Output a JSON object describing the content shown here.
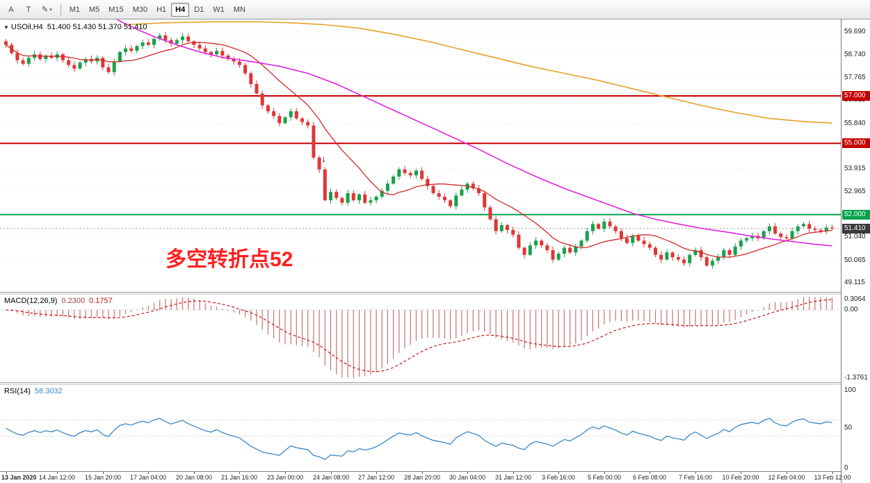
{
  "toolbar": {
    "tools": [
      {
        "name": "cursor-tool",
        "label": "A"
      },
      {
        "name": "text-tool",
        "label": "T"
      },
      {
        "name": "draw-tool",
        "label": "✎",
        "caret": "▾"
      }
    ],
    "timeframes": [
      "M1",
      "M5",
      "M15",
      "M30",
      "H1",
      "H4",
      "D1",
      "W1",
      "MN"
    ],
    "active_timeframe": "H4"
  },
  "main_chart": {
    "expand_icon": "▼",
    "symbol": "USOil,H4",
    "ohlc": "51.400 51.430 51.370 51.410",
    "annotation": {
      "text": "多空转折点52",
      "color": "#ff1e1e"
    },
    "down_arrow_marker": "↓",
    "price_ticks": [
      "59.690",
      "58.740",
      "57.765",
      "56.815",
      "55.840",
      "54.890",
      "53.915",
      "52.965",
      "51.990",
      "51.040",
      "50.065",
      "49.115"
    ],
    "price_range": {
      "top_price": 60.22,
      "bottom_price": 48.74
    },
    "hlines": [
      {
        "price": 57.0,
        "label": "57.000",
        "color": "#c40000"
      },
      {
        "price": 55.0,
        "label": "55.000",
        "color": "#c40000"
      },
      {
        "price": 52.0,
        "label": "52.000",
        "color": "#00a44a"
      }
    ],
    "current_price": {
      "price": 51.41,
      "label": "51.410",
      "badge_color": "#3a3a3a"
    },
    "colors": {
      "up": "#17a14c",
      "down": "#e03636",
      "ma_fast": "#d02828",
      "ma_mid": "#e022e0",
      "ma_slow": "#e8a023"
    },
    "candles": {
      "first_open": 59.3,
      "closes": [
        59.15,
        58.8,
        58.5,
        58.35,
        58.6,
        58.75,
        58.55,
        58.7,
        58.6,
        58.75,
        58.5,
        58.3,
        58.15,
        58.4,
        58.55,
        58.45,
        58.6,
        58.2,
        58.0,
        58.45,
        58.85,
        59.0,
        58.9,
        59.1,
        59.25,
        59.15,
        59.4,
        59.55,
        59.35,
        59.2,
        59.35,
        59.5,
        59.3,
        59.15,
        59.0,
        58.85,
        58.75,
        58.9,
        58.7,
        58.55,
        58.45,
        58.3,
        57.95,
        57.5,
        57.1,
        56.6,
        56.35,
        56.15,
        55.85,
        56.1,
        56.35,
        56.05,
        55.9,
        55.75,
        54.4,
        53.9,
        52.6,
        52.95,
        52.7,
        52.5,
        52.9,
        52.6,
        52.85,
        52.5,
        52.6,
        52.75,
        53.0,
        53.3,
        53.6,
        53.9,
        53.75,
        53.65,
        53.85,
        53.5,
        53.2,
        52.9,
        52.75,
        52.6,
        52.35,
        52.8,
        53.05,
        53.3,
        53.1,
        52.9,
        52.3,
        51.8,
        51.3,
        51.55,
        51.35,
        51.15,
        50.6,
        50.3,
        50.7,
        50.9,
        50.7,
        50.5,
        50.1,
        50.35,
        50.6,
        50.4,
        50.65,
        50.9,
        51.3,
        51.6,
        51.4,
        51.7,
        51.5,
        51.3,
        51.0,
        50.8,
        51.1,
        50.9,
        50.75,
        50.6,
        50.3,
        50.1,
        50.4,
        50.2,
        50.1,
        49.95,
        50.3,
        50.5,
        50.2,
        49.85,
        50.05,
        50.2,
        50.5,
        50.3,
        50.65,
        50.9,
        51.0,
        51.1,
        51.0,
        51.3,
        51.5,
        51.2,
        51.05,
        51.0,
        51.3,
        51.5,
        51.6,
        51.4,
        51.35,
        51.3,
        51.45,
        51.41
      ]
    },
    "ma_slow_points": [
      [
        21,
        60.0
      ],
      [
        28,
        60.08
      ],
      [
        36,
        60.12
      ],
      [
        44,
        60.12
      ],
      [
        50,
        60.08
      ],
      [
        56,
        60.0
      ],
      [
        62,
        59.85
      ],
      [
        68,
        59.6
      ],
      [
        74,
        59.3
      ],
      [
        80,
        58.95
      ],
      [
        86,
        58.6
      ],
      [
        92,
        58.25
      ],
      [
        98,
        57.95
      ],
      [
        104,
        57.65
      ],
      [
        110,
        57.3
      ],
      [
        116,
        56.95
      ],
      [
        122,
        56.6
      ],
      [
        128,
        56.3
      ],
      [
        134,
        56.05
      ],
      [
        140,
        55.92
      ],
      [
        145,
        55.85
      ]
    ],
    "ma_mid_points": [
      [
        17,
        60.6
      ],
      [
        20,
        60.15
      ],
      [
        23,
        59.8
      ],
      [
        26,
        59.5
      ],
      [
        30,
        59.15
      ],
      [
        34,
        58.85
      ],
      [
        38,
        58.62
      ],
      [
        43,
        58.45
      ],
      [
        48,
        58.25
      ],
      [
        53,
        57.95
      ],
      [
        58,
        57.5
      ],
      [
        63,
        56.95
      ],
      [
        68,
        56.4
      ],
      [
        73,
        55.85
      ],
      [
        78,
        55.3
      ],
      [
        83,
        54.75
      ],
      [
        88,
        54.15
      ],
      [
        93,
        53.6
      ],
      [
        98,
        53.1
      ],
      [
        102,
        52.75
      ],
      [
        106,
        52.4
      ],
      [
        110,
        52.05
      ],
      [
        114,
        51.8
      ],
      [
        118,
        51.6
      ],
      [
        122,
        51.42
      ],
      [
        126,
        51.28
      ],
      [
        130,
        51.12
      ],
      [
        134,
        50.98
      ],
      [
        138,
        50.86
      ],
      [
        142,
        50.75
      ],
      [
        145,
        50.68
      ]
    ],
    "time_labels": [
      "13 Jan 2020",
      "14 Jan 12:00",
      "15 Jan 20:00",
      "17 Jan 04:00",
      "20 Jan 08:00",
      "21 Jan 16:00",
      "23 Jan 00:00",
      "24 Jan 08:00",
      "27 Jan 12:00",
      "28 Jan 20:00",
      "30 Jan 04:00",
      "31 Jan 12:00",
      "3 Feb 16:00",
      "5 Feb 00:00",
      "6 Feb 08:00",
      "7 Feb 16:00",
      "10 Feb 20:00",
      "12 Feb 04:00",
      "13 Feb 12:00"
    ]
  },
  "macd": {
    "title": "MACD(12,26,9)",
    "value_main": "0.2300",
    "value_signal": "0.1757",
    "fast": 12,
    "slow": 26,
    "signal": 9,
    "axis_ticks": {
      "max": "0.3064",
      "zero": "0.00",
      "min": "-1.3761"
    },
    "colors": {
      "hist": "#c87070",
      "signal": "#cc1414",
      "value_main": "#a34040",
      "value_signal": "#cc1414"
    }
  },
  "rsi": {
    "title": "RSI(14)",
    "value": "58.3032",
    "period": 14,
    "axis_ticks": [
      "100",
      "50",
      "0"
    ],
    "levels": [
      60,
      40
    ],
    "color": "#3a87c8"
  }
}
